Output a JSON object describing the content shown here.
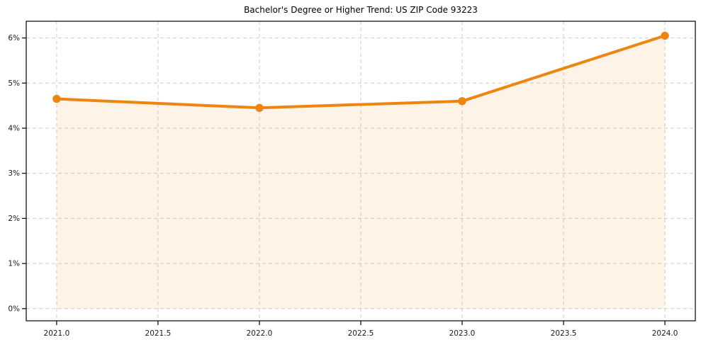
{
  "chart_data": {
    "type": "line",
    "title": "Bachelor's Degree or Higher Trend: US ZIP Code 93223",
    "x": [
      2021,
      2022,
      2023,
      2024
    ],
    "values": [
      4.65,
      4.45,
      4.6,
      6.05
    ],
    "xlabel": "",
    "ylabel": "",
    "xlim": [
      2020.85,
      2024.15
    ],
    "ylim": [
      -0.27,
      6.37
    ],
    "baseline": 0,
    "xticks": {
      "values": [
        2021.0,
        2021.5,
        2022.0,
        2022.5,
        2023.0,
        2023.5,
        2024.0
      ],
      "labels": [
        "2021.0",
        "2021.5",
        "2022.0",
        "2022.5",
        "2023.0",
        "2023.5",
        "2024.0"
      ]
    },
    "yticks": {
      "values": [
        0,
        1,
        2,
        3,
        4,
        5,
        6
      ],
      "labels": [
        "0%",
        "1%",
        "2%",
        "3%",
        "4%",
        "5%",
        "6%"
      ]
    },
    "grid": true,
    "grid_style": "dashed",
    "legend_position": "none",
    "style": {
      "line_color": "#ef8511",
      "marker_color": "#ef8511",
      "fill_color": "#ef8511",
      "fill_opacity": 0.1,
      "grid_color": "#cdcdcd",
      "spine_color": "#000000",
      "tick_text_color": "#1a1a1a",
      "background": "#ffffff"
    }
  }
}
